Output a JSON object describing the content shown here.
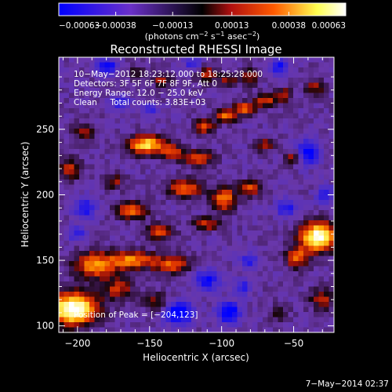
{
  "chart_data": {
    "type": "heatmap",
    "title": "Reconstructed RHESSI Image",
    "xlabel": "Heliocentric X (arcsec)",
    "ylabel": "Heliocentric Y (arcsec)",
    "xlim": [
      -213,
      -22
    ],
    "ylim": [
      95,
      305
    ],
    "x_ticks": [
      -200,
      -150,
      -100,
      -50
    ],
    "y_ticks": [
      100,
      150,
      200,
      250
    ],
    "x_tick_labels": [
      "−200",
      "−150",
      "−100",
      "−50"
    ],
    "y_tick_labels": [
      "100",
      "150",
      "200",
      "250"
    ],
    "colorbar": {
      "range": [
        -0.00063,
        0.00063
      ],
      "ticks": [
        -0.00063,
        -0.00038,
        -0.00013,
        0.00013,
        0.00038,
        0.00063
      ],
      "tick_labels": [
        "−0.00063",
        "−0.00038",
        "−0.00013",
        "0.00013",
        "0.00038",
        "0.00063"
      ],
      "unit_parts": [
        "(photons cm",
        "−2",
        " s",
        "−1",
        " asec",
        "−2",
        ")"
      ],
      "colors": [
        "#0000ff",
        "#6a30c8",
        "#000000",
        "#b01010",
        "#ff5a00",
        "#ffff50",
        "#ffffff"
      ]
    },
    "annotations": [
      "10−May−2012 18:23:12.000 to 18:25:28.000",
      "Detectors: 3F 5F 6F 7F 8F 9F, Att 0",
      "Energy Range: 12.0 − 25.0 keV",
      "Clean     Total counts: 3.83E+03"
    ],
    "peak_label": "Position of Peak = [−204,123]",
    "peak": [
      -204,
      123
    ],
    "timestamp": "7−May−2014 02:37",
    "grid": false
  }
}
